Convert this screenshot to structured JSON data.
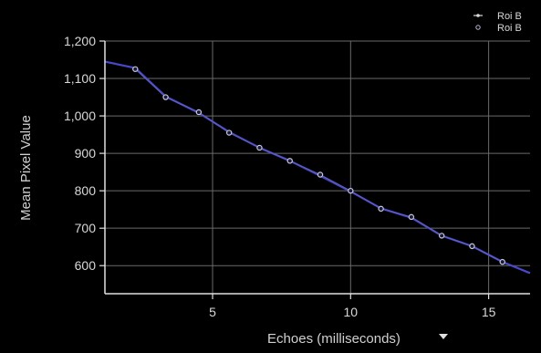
{
  "chart_data": {
    "type": "line",
    "xlabel": "Echoes (milliseconds)",
    "ylabel": "Mean Pixel Value",
    "xlim": [
      1.1,
      16.5
    ],
    "ylim": [
      525,
      1200
    ],
    "x_ticks": [
      5,
      10,
      15
    ],
    "y_ticks": [
      600,
      700,
      800,
      900,
      1000,
      1100,
      1200
    ],
    "x_tick_labels": [
      "5",
      "10",
      "15"
    ],
    "y_tick_labels": [
      "600",
      "700",
      "800",
      "900",
      "1,000",
      "1,100",
      "1,200"
    ],
    "grid": true,
    "legend_position": "top-right",
    "series": [
      {
        "name": "Roi B",
        "color": "#4848c8",
        "marker": "none",
        "x": [
          1.1,
          2.2,
          3.3,
          4.5,
          5.6,
          6.7,
          7.8,
          8.9,
          10.0,
          11.1,
          12.2,
          13.3,
          14.4,
          15.5,
          16.5
        ],
        "y": [
          1145,
          1128,
          1052,
          1008,
          957,
          915,
          880,
          840,
          798,
          753,
          728,
          680,
          652,
          610,
          580
        ]
      },
      {
        "name": "Roi B",
        "color": "#c8c8e8",
        "marker": "circle",
        "x": [
          2.2,
          3.3,
          4.5,
          5.6,
          6.7,
          7.8,
          8.9,
          10.0,
          11.1,
          12.2,
          13.3,
          14.4,
          15.5
        ],
        "y": [
          1125,
          1050,
          1010,
          955,
          915,
          880,
          843,
          800,
          752,
          730,
          680,
          652,
          610
        ]
      }
    ]
  },
  "colors": {
    "background": "#000000",
    "grid": "#6a6a6a",
    "axis": "#e0e0e0",
    "text": "#d8d8d8"
  },
  "icons": {
    "axis_menu": "caret-down-icon"
  }
}
